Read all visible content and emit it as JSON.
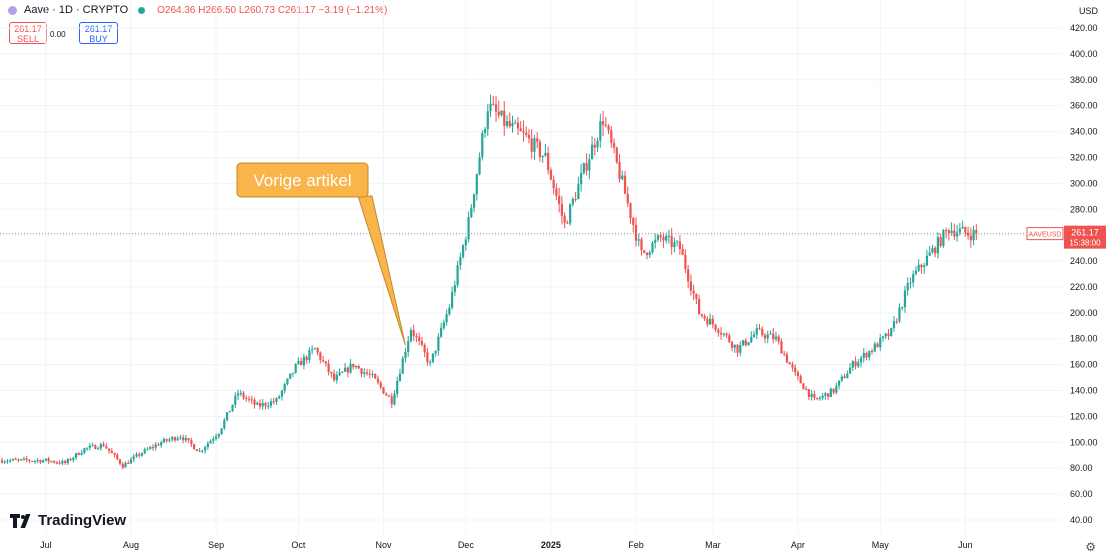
{
  "header": {
    "symbol": "Aave · 1D · CRYPTO",
    "open": "O264.36",
    "high": "H266.50",
    "low": "L260.73",
    "close": "C261.17",
    "change": "−3.19 (−1.21%)"
  },
  "trade": {
    "sell_price": "261.17",
    "sell_label": "SELL",
    "spread": "0.00",
    "buy_price": "261.17",
    "buy_label": "BUY"
  },
  "currency": "USD",
  "brand": "TradingView",
  "colors": {
    "up": "#26a69a",
    "down": "#ef5350",
    "annotation": "#f9b44a",
    "price_tag": "#ef5350"
  },
  "chart_data": {
    "type": "candlestick",
    "y_ticks": [
      40,
      60,
      80,
      100,
      120,
      140,
      160,
      180,
      200,
      220,
      240,
      260,
      280,
      300,
      320,
      340,
      360,
      380,
      400,
      420
    ],
    "x_ticks": [
      "Jul",
      "Aug",
      "Sep",
      "Oct",
      "Nov",
      "Dec",
      "2025",
      "Feb",
      "Mar",
      "Apr",
      "May",
      "Jun"
    ],
    "ylim": [
      40,
      420
    ],
    "last_price": {
      "label": "AAVEUSD",
      "value": "261.17",
      "countdown": "15:38:00",
      "y": 261.17
    },
    "annotation": {
      "text": "Vorige artikel",
      "target": [
        "2024-11-09",
        175
      ]
    },
    "series": [
      {
        "date": "2024-07-01",
        "close": 86
      },
      {
        "date": "2024-07-08",
        "close": 84
      },
      {
        "date": "2024-07-15",
        "close": 95
      },
      {
        "date": "2024-07-22",
        "close": 98
      },
      {
        "date": "2024-07-29",
        "close": 82
      },
      {
        "date": "2024-08-05",
        "close": 92
      },
      {
        "date": "2024-08-12",
        "close": 100
      },
      {
        "date": "2024-08-19",
        "close": 105
      },
      {
        "date": "2024-08-26",
        "close": 93
      },
      {
        "date": "2024-09-02",
        "close": 108
      },
      {
        "date": "2024-09-09",
        "close": 138
      },
      {
        "date": "2024-09-16",
        "close": 128
      },
      {
        "date": "2024-09-23",
        "close": 132
      },
      {
        "date": "2024-09-30",
        "close": 158
      },
      {
        "date": "2024-10-07",
        "close": 172
      },
      {
        "date": "2024-10-14",
        "close": 148
      },
      {
        "date": "2024-10-21",
        "close": 160
      },
      {
        "date": "2024-10-28",
        "close": 150
      },
      {
        "date": "2024-11-04",
        "close": 132
      },
      {
        "date": "2024-11-11",
        "close": 188
      },
      {
        "date": "2024-11-18",
        "close": 160
      },
      {
        "date": "2024-11-25",
        "close": 205
      },
      {
        "date": "2024-12-02",
        "close": 270
      },
      {
        "date": "2024-12-09",
        "close": 360
      },
      {
        "date": "2024-12-16",
        "close": 345
      },
      {
        "date": "2024-12-23",
        "close": 335
      },
      {
        "date": "2024-12-30",
        "close": 320
      },
      {
        "date": "2025-01-06",
        "close": 268
      },
      {
        "date": "2025-01-13",
        "close": 310
      },
      {
        "date": "2025-01-20",
        "close": 350
      },
      {
        "date": "2025-01-27",
        "close": 300
      },
      {
        "date": "2025-02-03",
        "close": 245
      },
      {
        "date": "2025-02-10",
        "close": 258
      },
      {
        "date": "2025-02-17",
        "close": 250
      },
      {
        "date": "2025-02-24",
        "close": 200
      },
      {
        "date": "2025-03-03",
        "close": 188
      },
      {
        "date": "2025-03-10",
        "close": 172
      },
      {
        "date": "2025-03-17",
        "close": 185
      },
      {
        "date": "2025-03-24",
        "close": 180
      },
      {
        "date": "2025-03-31",
        "close": 152
      },
      {
        "date": "2025-04-07",
        "close": 132
      },
      {
        "date": "2025-04-14",
        "close": 140
      },
      {
        "date": "2025-04-21",
        "close": 160
      },
      {
        "date": "2025-04-28",
        "close": 172
      },
      {
        "date": "2025-05-05",
        "close": 185
      },
      {
        "date": "2025-05-12",
        "close": 225
      },
      {
        "date": "2025-05-19",
        "close": 245
      },
      {
        "date": "2025-05-26",
        "close": 265
      },
      {
        "date": "2025-06-02",
        "close": 261.17
      }
    ]
  }
}
